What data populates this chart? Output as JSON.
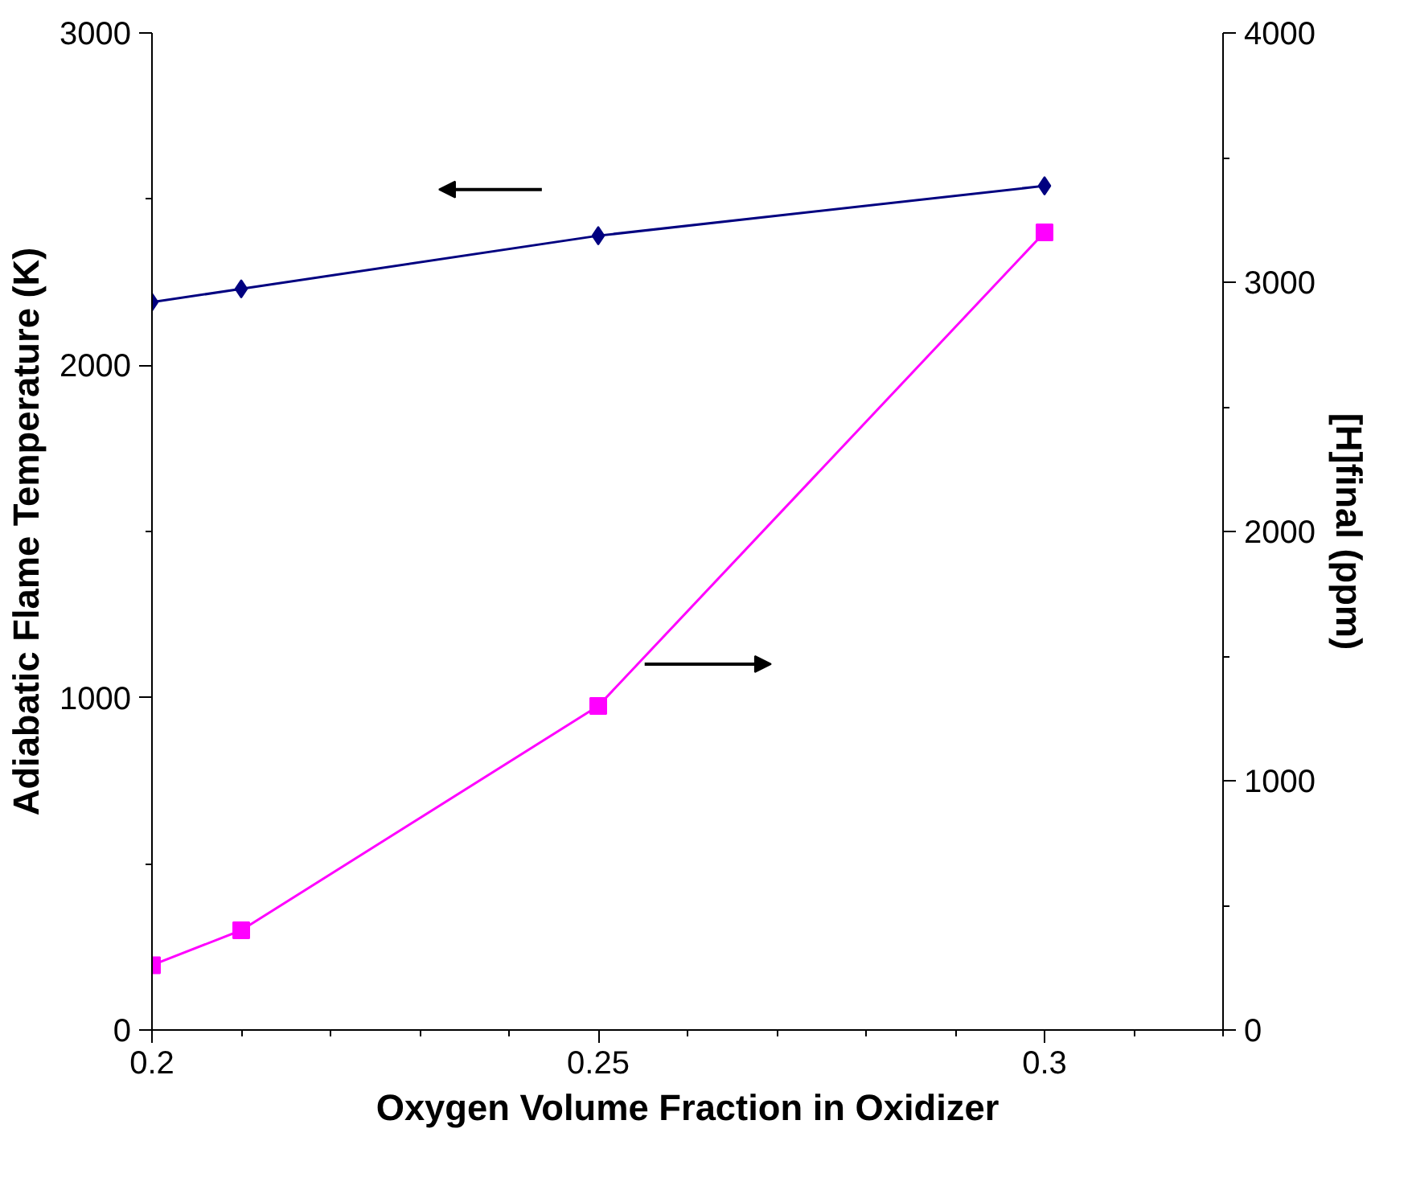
{
  "chart_data": {
    "type": "line",
    "xlabel": "Oxygen Volume Fraction in Oxidizer",
    "ylabel": "Adiabatic Flame Temperature (K)",
    "y2label": "[H]final (ppm)",
    "x": [
      0.2,
      0.21,
      0.25,
      0.3
    ],
    "series": [
      {
        "color": "#000080",
        "values": [
          2190,
          2230,
          2390,
          2540
        ],
        "marker": "diamond"
      },
      {
        "color": "#ff00ff",
        "values": [
          260,
          400,
          1300,
          3200
        ],
        "marker": "square",
        "axis": "y2"
      }
    ],
    "xlim": [
      0.2,
      0.32
    ],
    "xticks": [
      0.2,
      0.25,
      0.3
    ],
    "ylim": [
      0,
      3000
    ],
    "yticks": [
      0,
      1000,
      2000,
      3000
    ],
    "y2lim": [
      0,
      4000
    ],
    "y2ticks": [
      0,
      1000,
      2000,
      3000,
      4000
    ],
    "grid": false,
    "line_style": "solid"
  }
}
